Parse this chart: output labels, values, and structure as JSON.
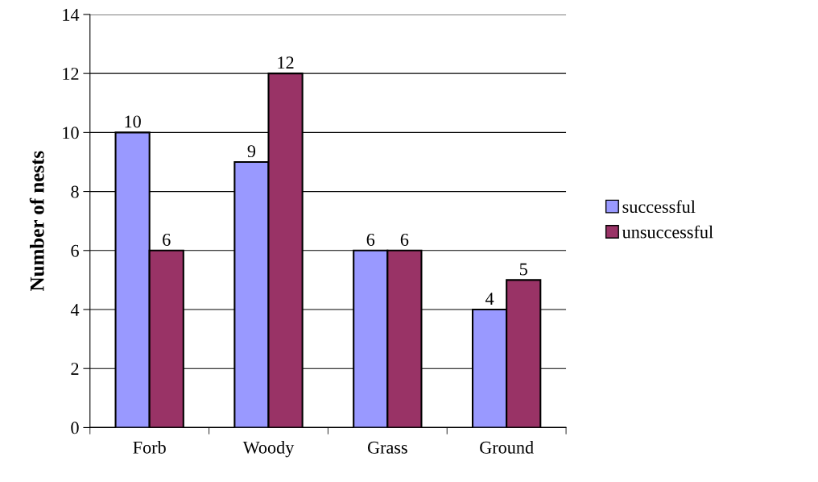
{
  "chart_data": {
    "type": "bar",
    "ylabel": "Number of nests",
    "categories": [
      "Forb",
      "Woody",
      "Grass",
      "Ground"
    ],
    "series": [
      {
        "name": "successful",
        "color": "#9999ff",
        "values": [
          10,
          9,
          6,
          4
        ]
      },
      {
        "name": "unsuccessful",
        "color": "#993366",
        "values": [
          6,
          12,
          6,
          5
        ]
      }
    ],
    "ylim": [
      0,
      14
    ],
    "yticks": [
      0,
      2,
      4,
      6,
      8,
      10,
      12,
      14
    ],
    "grid": "y",
    "legend": "right",
    "data_labels": true
  }
}
